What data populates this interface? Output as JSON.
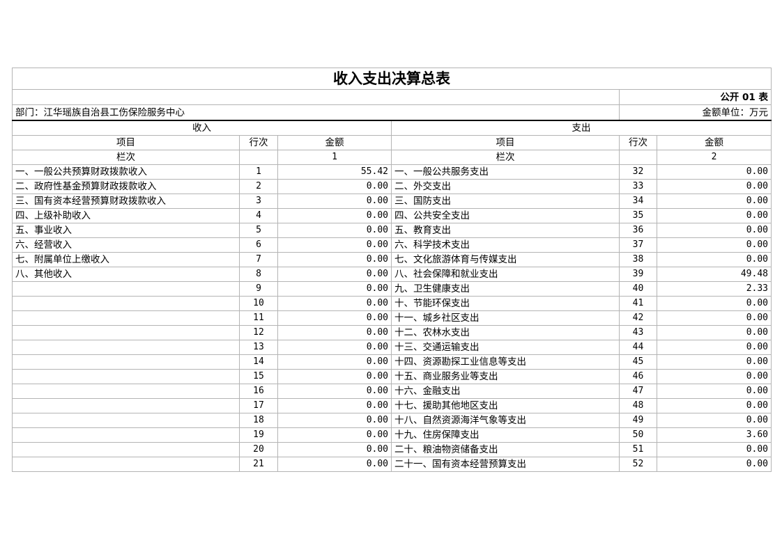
{
  "title": "收入支出决算总表",
  "table_code": "公开 01 表",
  "department": "部门：江华瑶族自治县工伤保险服务中心",
  "unit": "金额单位：万元",
  "income_header": "收入",
  "expense_header": "支出",
  "col_item": "项目",
  "col_line": "行次",
  "col_amount": "金额",
  "col_index_label": "栏次",
  "income_col_index": "1",
  "expense_col_index": "2",
  "rows": [
    {
      "in_item": "一、一般公共预算财政拨款收入",
      "in_line": "1",
      "in_amt": "55.42",
      "ex_item": "一、一般公共服务支出",
      "ex_line": "32",
      "ex_amt": "0.00"
    },
    {
      "in_item": "二、政府性基金预算财政拨款收入",
      "in_line": "2",
      "in_amt": "0.00",
      "ex_item": "二、外交支出",
      "ex_line": "33",
      "ex_amt": "0.00"
    },
    {
      "in_item": "三、国有资本经营预算财政拨款收入",
      "in_line": "3",
      "in_amt": "0.00",
      "ex_item": "三、国防支出",
      "ex_line": "34",
      "ex_amt": "0.00"
    },
    {
      "in_item": "四、上级补助收入",
      "in_line": "4",
      "in_amt": "0.00",
      "ex_item": "四、公共安全支出",
      "ex_line": "35",
      "ex_amt": "0.00"
    },
    {
      "in_item": "五、事业收入",
      "in_line": "5",
      "in_amt": "0.00",
      "ex_item": "五、教育支出",
      "ex_line": "36",
      "ex_amt": "0.00"
    },
    {
      "in_item": "六、经营收入",
      "in_line": "6",
      "in_amt": "0.00",
      "ex_item": "六、科学技术支出",
      "ex_line": "37",
      "ex_amt": "0.00"
    },
    {
      "in_item": "七、附属单位上缴收入",
      "in_line": "7",
      "in_amt": "0.00",
      "ex_item": "七、文化旅游体育与传媒支出",
      "ex_line": "38",
      "ex_amt": "0.00"
    },
    {
      "in_item": "八、其他收入",
      "in_line": "8",
      "in_amt": "0.00",
      "ex_item": "八、社会保障和就业支出",
      "ex_line": "39",
      "ex_amt": "49.48"
    },
    {
      "in_item": "",
      "in_line": "9",
      "in_amt": "0.00",
      "ex_item": "九、卫生健康支出",
      "ex_line": "40",
      "ex_amt": "2.33"
    },
    {
      "in_item": "",
      "in_line": "10",
      "in_amt": "0.00",
      "ex_item": "十、节能环保支出",
      "ex_line": "41",
      "ex_amt": "0.00"
    },
    {
      "in_item": "",
      "in_line": "11",
      "in_amt": "0.00",
      "ex_item": "十一、城乡社区支出",
      "ex_line": "42",
      "ex_amt": "0.00"
    },
    {
      "in_item": "",
      "in_line": "12",
      "in_amt": "0.00",
      "ex_item": "十二、农林水支出",
      "ex_line": "43",
      "ex_amt": "0.00"
    },
    {
      "in_item": "",
      "in_line": "13",
      "in_amt": "0.00",
      "ex_item": "十三、交通运输支出",
      "ex_line": "44",
      "ex_amt": "0.00"
    },
    {
      "in_item": "",
      "in_line": "14",
      "in_amt": "0.00",
      "ex_item": "十四、资源勘探工业信息等支出",
      "ex_line": "45",
      "ex_amt": "0.00"
    },
    {
      "in_item": "",
      "in_line": "15",
      "in_amt": "0.00",
      "ex_item": "十五、商业服务业等支出",
      "ex_line": "46",
      "ex_amt": "0.00"
    },
    {
      "in_item": "",
      "in_line": "16",
      "in_amt": "0.00",
      "ex_item": "十六、金融支出",
      "ex_line": "47",
      "ex_amt": "0.00"
    },
    {
      "in_item": "",
      "in_line": "17",
      "in_amt": "0.00",
      "ex_item": "十七、援助其他地区支出",
      "ex_line": "48",
      "ex_amt": "0.00"
    },
    {
      "in_item": "",
      "in_line": "18",
      "in_amt": "0.00",
      "ex_item": "十八、自然资源海洋气象等支出",
      "ex_line": "49",
      "ex_amt": "0.00"
    },
    {
      "in_item": "",
      "in_line": "19",
      "in_amt": "0.00",
      "ex_item": "十九、住房保障支出",
      "ex_line": "50",
      "ex_amt": "3.60"
    },
    {
      "in_item": "",
      "in_line": "20",
      "in_amt": "0.00",
      "ex_item": "二十、粮油物资储备支出",
      "ex_line": "51",
      "ex_amt": "0.00"
    },
    {
      "in_item": "",
      "in_line": "21",
      "in_amt": "0.00",
      "ex_item": "二十一、国有资本经营预算支出",
      "ex_line": "52",
      "ex_amt": "0.00"
    }
  ]
}
